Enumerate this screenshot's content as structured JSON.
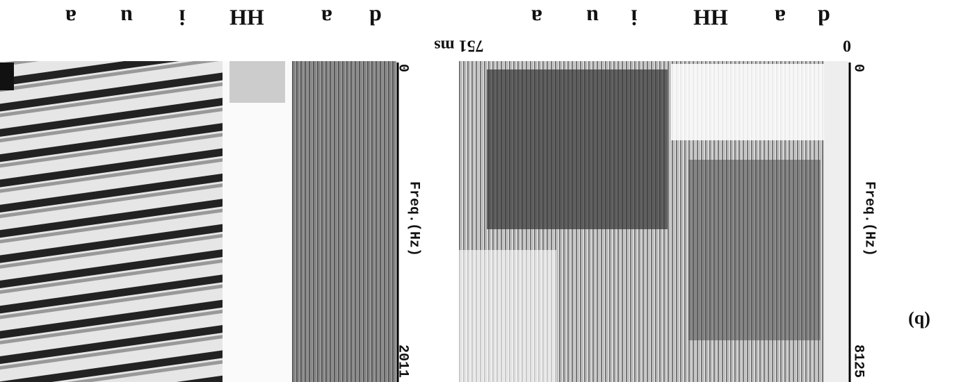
{
  "figure": {
    "panel_label": "(b)",
    "time_axis": {
      "start": "0",
      "end": "751 ms"
    },
    "spectrograms": [
      {
        "freq_label": "Freq.(Hz)",
        "freq_min": "0",
        "freq_max": "8125",
        "segments": [
          "d",
          "a",
          "HH",
          "i",
          "u",
          "a"
        ]
      },
      {
        "freq_label": "Freq.(Hz)",
        "freq_min": "0",
        "freq_max": "2011",
        "segments": [
          "d",
          "a",
          "HH",
          "i",
          "u",
          "a"
        ]
      }
    ]
  }
}
